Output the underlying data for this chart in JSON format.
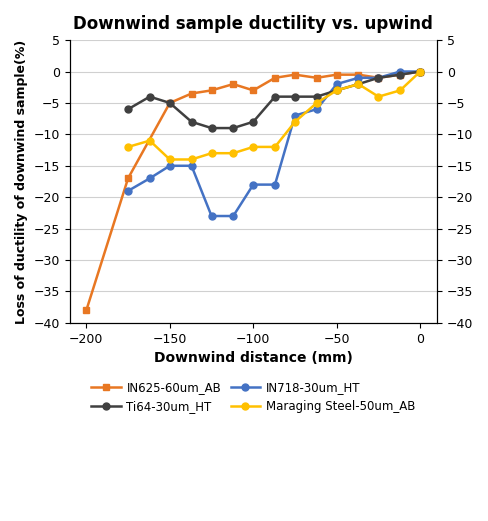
{
  "title": "Downwind sample ductility vs. upwind",
  "xlabel": "Downwind distance (mm)",
  "ylabel": "Loss of ductility of downwind sample(%)",
  "xlim": [
    -210,
    10
  ],
  "ylim": [
    -40,
    5
  ],
  "yticks_left": [
    -40,
    -35,
    -30,
    -25,
    -20,
    -15,
    -10,
    -5,
    0,
    5
  ],
  "xticks": [
    -200,
    -150,
    -100,
    -50,
    0
  ],
  "series": [
    {
      "label": "IN625-60um_AB",
      "color": "#E87722",
      "marker": "s",
      "x": [
        -200,
        -175,
        -150,
        -137,
        -125,
        -112,
        -100,
        -87,
        -75,
        -62,
        -50,
        -37,
        -25,
        -12,
        0
      ],
      "y": [
        -38,
        -17,
        -5,
        -3.5,
        -3,
        -2,
        -3,
        -1,
        -0.5,
        -1,
        -0.5,
        -0.5,
        -1,
        -0.5,
        0
      ]
    },
    {
      "label": "IN718-30um_HT",
      "color": "#4472C4",
      "marker": "o",
      "x": [
        -175,
        -162,
        -150,
        -137,
        -125,
        -112,
        -100,
        -87,
        -75,
        -62,
        -50,
        -37,
        -25,
        -12,
        0
      ],
      "y": [
        -19,
        -17,
        -15,
        -15,
        -23,
        -23,
        -18,
        -18,
        -7,
        -6,
        -2,
        -1,
        -1,
        0,
        0
      ]
    },
    {
      "label": "Ti64-30um_HT",
      "color": "#404040",
      "marker": "o",
      "x": [
        -175,
        -162,
        -150,
        -137,
        -125,
        -112,
        -100,
        -87,
        -75,
        -62,
        -50,
        -37,
        -25,
        -12,
        0
      ],
      "y": [
        -6,
        -4,
        -5,
        -8,
        -9,
        -9,
        -8,
        -4,
        -4,
        -4,
        -3,
        -2,
        -1,
        -0.5,
        0
      ]
    },
    {
      "label": "Maraging Steel-50um_AB",
      "color": "#FFC000",
      "marker": "o",
      "x": [
        -175,
        -162,
        -150,
        -137,
        -125,
        -112,
        -100,
        -87,
        -75,
        -62,
        -50,
        -37,
        -25,
        -12,
        0
      ],
      "y": [
        -12,
        -11,
        -14,
        -14,
        -13,
        -13,
        -12,
        -12,
        -8,
        -5,
        -3,
        -2,
        -4,
        -3,
        0
      ]
    }
  ],
  "legend_order": [
    0,
    2,
    1,
    3
  ],
  "background_color": "#ffffff",
  "grid_color": "#d0d0d0"
}
